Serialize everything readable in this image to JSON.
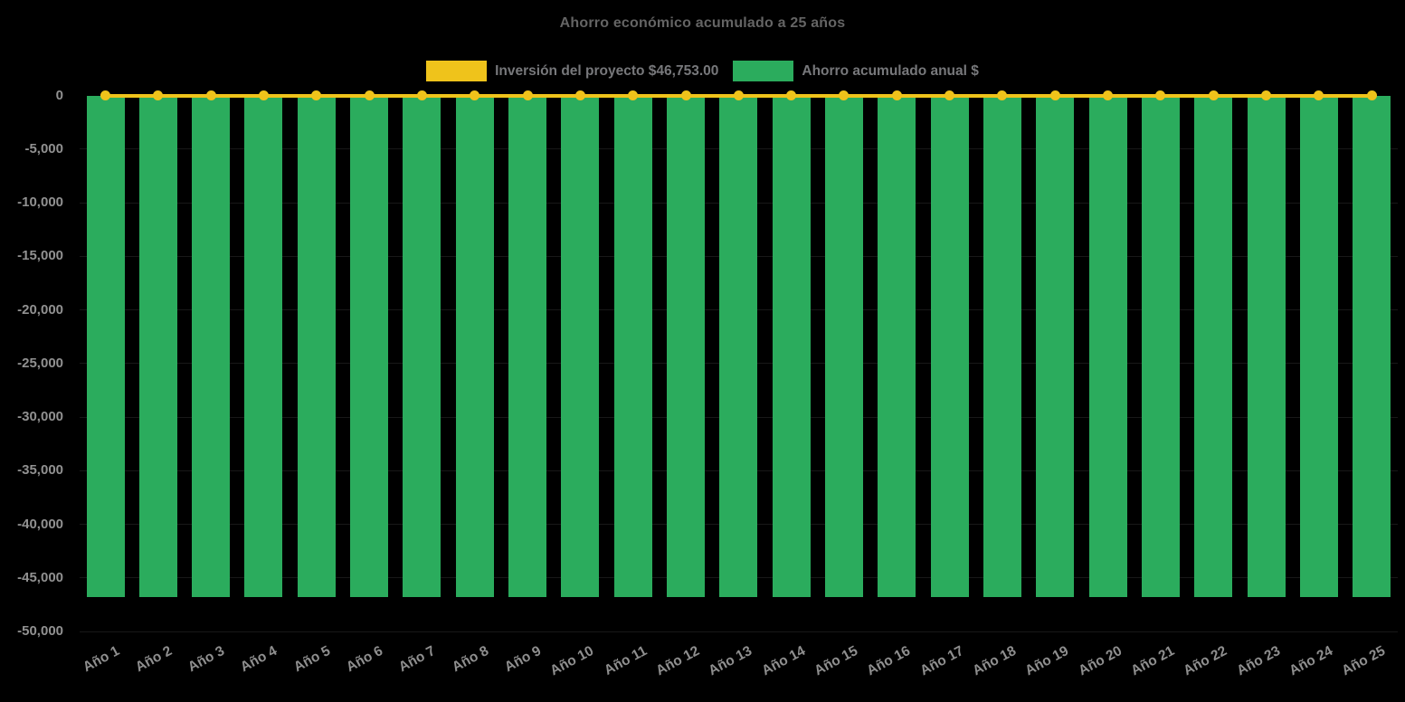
{
  "title": "Ahorro económico acumulado a 25 años",
  "legend": {
    "items": [
      {
        "label": "Inversión del proyecto $46,753.00",
        "color": "#EFC31B",
        "series_type": "line"
      },
      {
        "label": "Ahorro acumulado anual $",
        "color": "#2BAC5D",
        "series_type": "bar"
      }
    ]
  },
  "colors": {
    "background": "#000000",
    "bar_green": "#2BAC5D",
    "line_yellow": "#EFC31B",
    "title_text": "#646464",
    "legend_text": "#77787b",
    "axis_text": "#919191"
  },
  "chart_data": {
    "type": "bar",
    "title": "Ahorro económico acumulado a 25 años",
    "xlabel": "",
    "ylabel": "",
    "ylim": [
      -50000,
      0
    ],
    "grid": "faint-horizontal",
    "legend_position": "top",
    "categories": [
      "Año 1",
      "Año 2",
      "Año 3",
      "Año 4",
      "Año 5",
      "Año 6",
      "Año 7",
      "Año 8",
      "Año 9",
      "Año 10",
      "Año 11",
      "Año 12",
      "Año 13",
      "Año 14",
      "Año 15",
      "Año 16",
      "Año 17",
      "Año 18",
      "Año 19",
      "Año 20",
      "Año 21",
      "Año 22",
      "Año 23",
      "Año 24",
      "Año 25"
    ],
    "y_ticks": {
      "values": [
        0,
        -5000,
        -10000,
        -15000,
        -20000,
        -25000,
        -30000,
        -35000,
        -40000,
        -45000,
        -50000
      ],
      "labels": [
        "0",
        "-5,000",
        "-10,000",
        "-15,000",
        "-20,000",
        "-25,000",
        "-30,000",
        "-35,000",
        "-40,000",
        "-45,000",
        "-50,000"
      ]
    },
    "series": [
      {
        "name": "Inversión del proyecto $46,753.00",
        "chart": "line",
        "color": "#EFC31B",
        "marker": "circle",
        "values": [
          0,
          0,
          0,
          0,
          0,
          0,
          0,
          0,
          0,
          0,
          0,
          0,
          0,
          0,
          0,
          0,
          0,
          0,
          0,
          0,
          0,
          0,
          0,
          0,
          0
        ]
      },
      {
        "name": "Ahorro acumulado anual $",
        "chart": "bar",
        "color": "#2BAC5D",
        "values": [
          -46753,
          -46753,
          -46753,
          -46753,
          -46753,
          -46753,
          -46753,
          -46753,
          -46753,
          -46753,
          -46753,
          -46753,
          -46753,
          -46753,
          -46753,
          -46753,
          -46753,
          -46753,
          -46753,
          -46753,
          -46753,
          -46753,
          -46753,
          -46753,
          -46753
        ]
      }
    ]
  }
}
